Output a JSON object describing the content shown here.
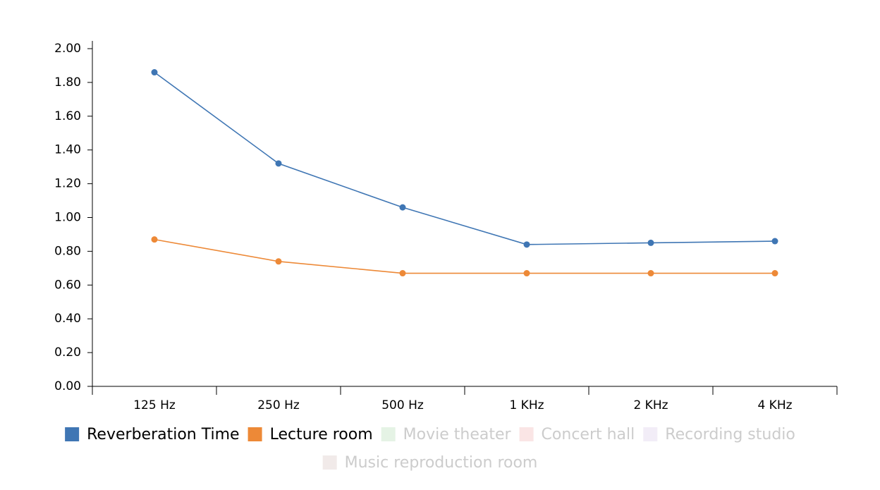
{
  "chart_data": {
    "type": "line",
    "categories": [
      "125 Hz",
      "250 Hz",
      "500 Hz",
      "1 KHz",
      "2 KHz",
      "4 KHz"
    ],
    "series": [
      {
        "name": "Reverberation Time",
        "color": "#3f76b4",
        "values": [
          1.86,
          1.32,
          1.06,
          0.84,
          0.85,
          0.86
        ]
      },
      {
        "name": "Lecture room",
        "color": "#ed8937",
        "values": [
          0.87,
          0.74,
          0.67,
          0.67,
          0.67,
          0.67
        ]
      },
      {
        "name": "Movie theater",
        "color": "#2ca02c",
        "visible": false
      },
      {
        "name": "Concert hall",
        "color": "#d62728",
        "visible": false
      },
      {
        "name": "Recording studio",
        "color": "#9467bd",
        "visible": false
      },
      {
        "name": "Music reproduction room",
        "color": "#8c564b",
        "visible": false
      }
    ],
    "ylim": [
      0,
      2
    ],
    "yticks": [
      {
        "value": 0,
        "label": "0.00"
      },
      {
        "value": 0.2,
        "label": "0.20"
      },
      {
        "value": 0.4,
        "label": "0.40"
      },
      {
        "value": 0.6,
        "label": "0.60"
      },
      {
        "value": 0.8,
        "label": "0.80"
      },
      {
        "value": 1,
        "label": "1.00"
      },
      {
        "value": 1.2,
        "label": "1.20"
      },
      {
        "value": 1.4,
        "label": "1.40"
      },
      {
        "value": 1.6,
        "label": "1.60"
      },
      {
        "value": 1.8,
        "label": "1.80"
      },
      {
        "value": 2,
        "label": "2.00"
      }
    ],
    "grid": false
  }
}
